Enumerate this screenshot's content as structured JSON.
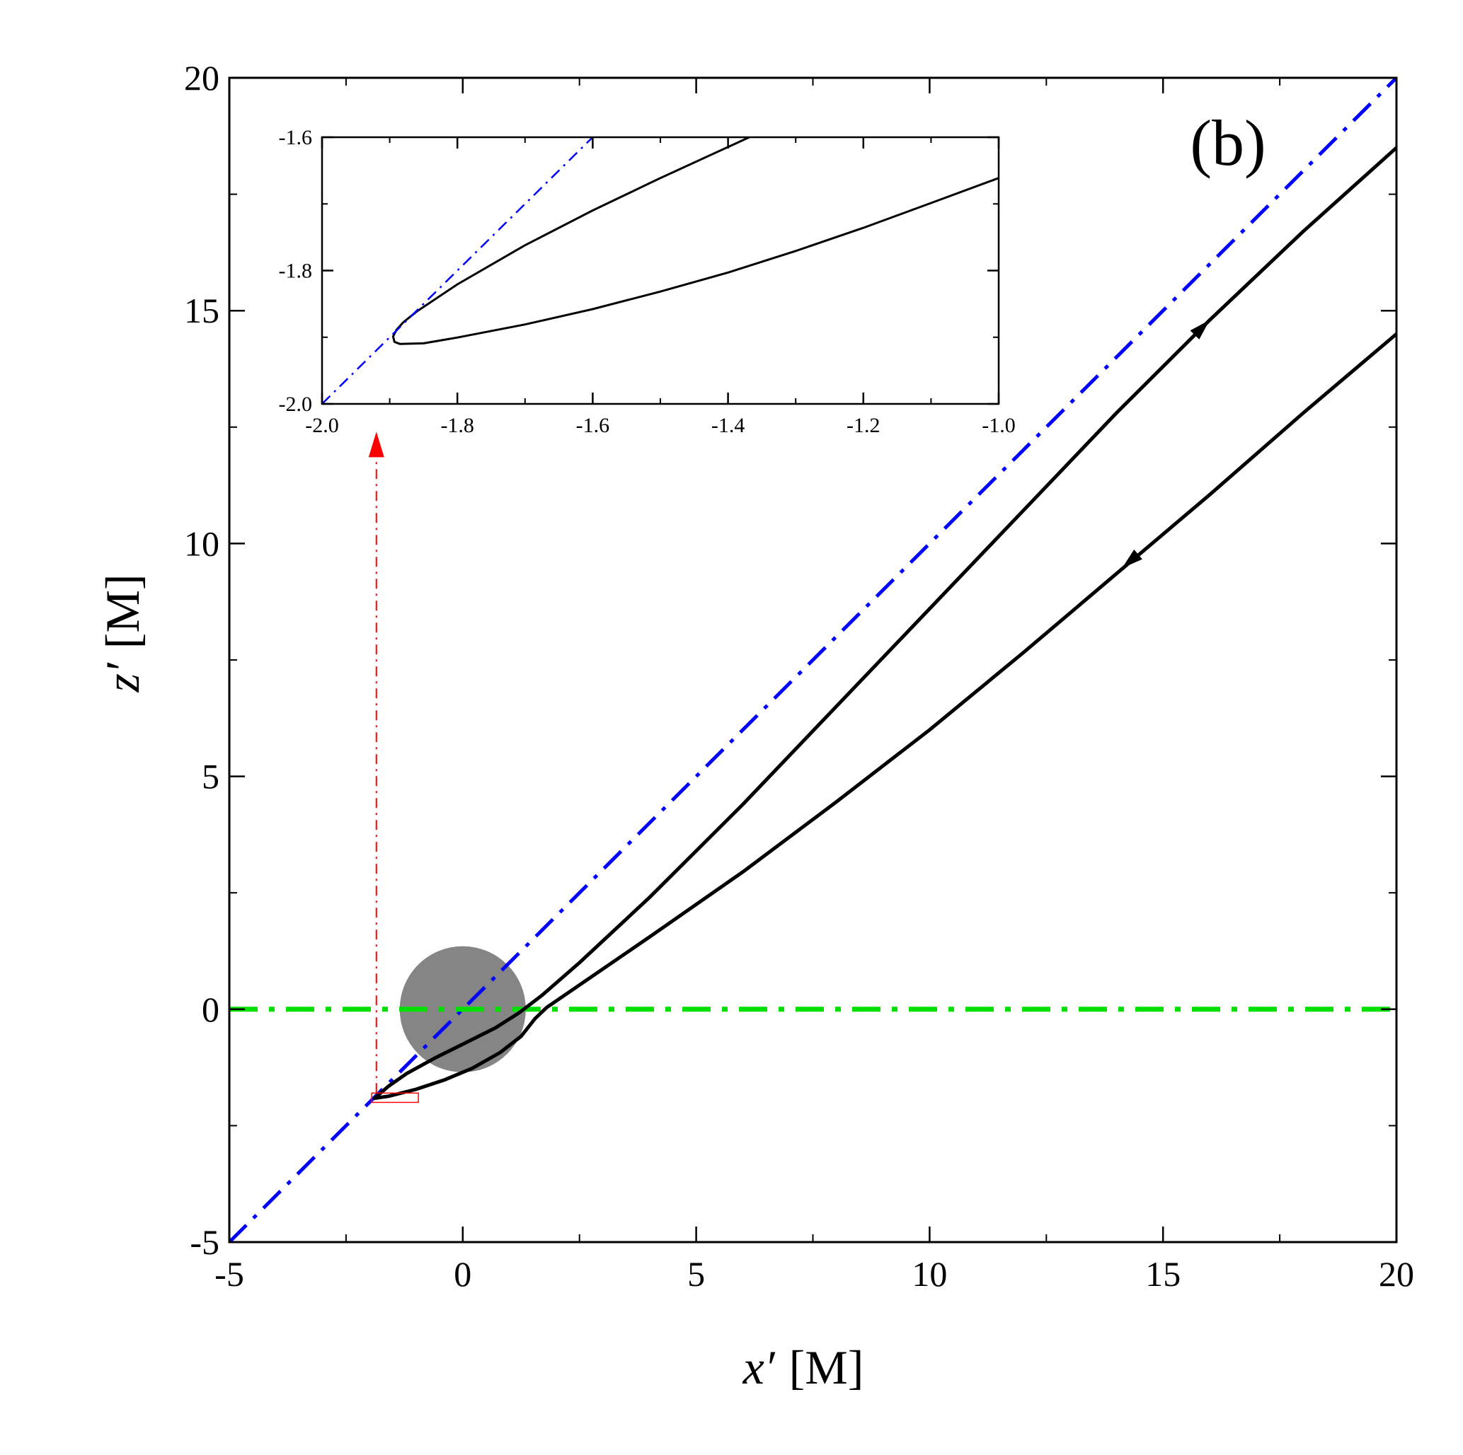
{
  "chart_data": {
    "type": "line",
    "panel_label": "(b)",
    "xlabel": {
      "symbol": "x′",
      "unit": "[M]"
    },
    "ylabel": {
      "symbol": "z′",
      "unit": "[M]"
    },
    "xlim": [
      -5,
      20
    ],
    "ylim": [
      -5,
      20
    ],
    "x_ticks": [
      "-5",
      "0",
      "5",
      "10",
      "15",
      "20"
    ],
    "y_ticks": [
      "-5",
      "0",
      "5",
      "10",
      "15",
      "20"
    ],
    "grid": false,
    "series": [
      {
        "line": "solid",
        "color": "#000000",
        "arrow": "outgoing",
        "points": [
          [
            -1.89,
            -1.91
          ],
          [
            -1.6,
            -1.66
          ],
          [
            -1.2,
            -1.38
          ],
          [
            -0.6,
            -1.05
          ],
          [
            0.0,
            -0.75
          ],
          [
            0.7,
            -0.4
          ],
          [
            1.2,
            -0.08
          ],
          [
            1.7,
            0.3
          ],
          [
            2.5,
            1.0
          ],
          [
            4.0,
            2.4
          ],
          [
            6.0,
            4.4
          ],
          [
            8.0,
            6.5
          ],
          [
            10.0,
            8.6
          ],
          [
            12.0,
            10.7
          ],
          [
            14.0,
            12.8
          ],
          [
            16.0,
            14.8
          ],
          [
            18.0,
            16.7
          ],
          [
            20.0,
            18.5
          ]
        ]
      },
      {
        "line": "solid",
        "color": "#000000",
        "arrow": "incoming",
        "points": [
          [
            -1.89,
            -1.91
          ],
          [
            -1.6,
            -1.87
          ],
          [
            -1.0,
            -1.72
          ],
          [
            -0.4,
            -1.52
          ],
          [
            0.2,
            -1.27
          ],
          [
            0.8,
            -0.93
          ],
          [
            1.25,
            -0.58
          ],
          [
            1.55,
            -0.2
          ],
          [
            1.8,
            0.04
          ],
          [
            2.5,
            0.52
          ],
          [
            4.0,
            1.55
          ],
          [
            6.0,
            2.95
          ],
          [
            8.0,
            4.45
          ],
          [
            10.0,
            6.0
          ],
          [
            12.0,
            7.65
          ],
          [
            14.0,
            9.35
          ],
          [
            16.0,
            11.05
          ],
          [
            18.0,
            12.8
          ],
          [
            20.0,
            14.5
          ]
        ]
      },
      {
        "line": "dash-dot",
        "color": "#0000ff",
        "points": [
          [
            -5,
            -5
          ],
          [
            20,
            20
          ]
        ]
      },
      {
        "line": "dash-dot",
        "color": "#00e000",
        "points": [
          [
            -5,
            0
          ],
          [
            20,
            0
          ]
        ]
      }
    ],
    "shaded_disk": {
      "center": [
        0,
        0
      ],
      "radius": 1.35,
      "color": "#707070"
    },
    "zoom_box": {
      "x": [
        -1.95,
        -0.95
      ],
      "y": [
        -2.0,
        -1.8
      ],
      "color": "#ff0000"
    },
    "zoom_arrow": {
      "x": -1.85,
      "from_y": -1.8,
      "to_y": 12.4,
      "color": "#ff0000"
    },
    "inset": {
      "xlim": [
        -2.0,
        -1.0
      ],
      "ylim": [
        -2.0,
        -1.6
      ],
      "x_ticks": [
        "-2.0",
        "-1.8",
        "-1.6",
        "-1.4",
        "-1.2",
        "-1.0"
      ],
      "y_ticks": [
        "-2.0",
        "-1.8",
        "-1.6"
      ],
      "series": [
        {
          "line": "solid",
          "color": "#000000",
          "points": [
            [
              -1.3685,
              -1.6
            ],
            [
              -1.5,
              -1.6612
            ],
            [
              -1.6,
              -1.7098
            ],
            [
              -1.7,
              -1.762
            ],
            [
              -1.8,
              -1.8207
            ],
            [
              -1.86,
              -1.8614
            ],
            [
              -1.88,
              -1.8777
            ],
            [
              -1.89,
              -1.8889
            ],
            [
              -1.895,
              -1.8989
            ],
            [
              -1.893,
              -1.9069
            ],
            [
              -1.885,
              -1.91
            ],
            [
              -1.85,
              -1.9092
            ],
            [
              -1.8,
              -1.9005
            ],
            [
              -1.7,
              -1.8809
            ],
            [
              -1.6,
              -1.8578
            ],
            [
              -1.5,
              -1.8315
            ],
            [
              -1.4,
              -1.803
            ],
            [
              -1.3,
              -1.7706
            ],
            [
              -1.2,
              -1.7359
            ],
            [
              -1.1,
              -1.6987
            ],
            [
              -1.0,
              -1.6612
            ]
          ]
        },
        {
          "line": "dash-dot",
          "color": "#0000ff",
          "points": [
            [
              -2.0,
              -2.0
            ],
            [
              -1.6,
              -1.6
            ]
          ]
        }
      ]
    }
  }
}
